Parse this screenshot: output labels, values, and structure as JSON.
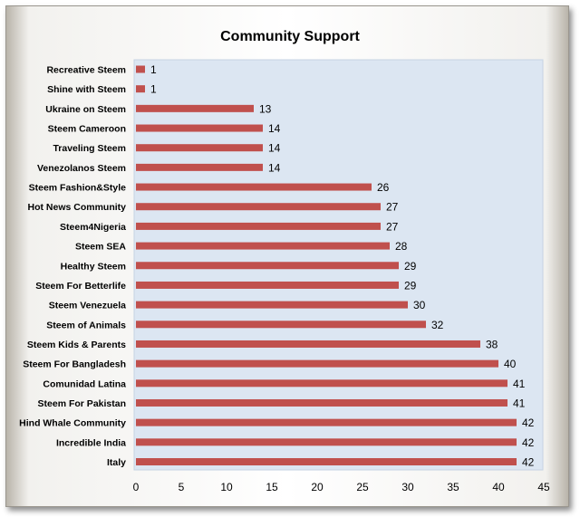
{
  "chart_data": {
    "type": "bar",
    "orientation": "horizontal",
    "title": "Community Support",
    "categories": [
      "Recreative Steem",
      "Shine with Steem",
      "Ukraine on Steem",
      "Steem Cameroon",
      "Traveling Steem",
      "Venezolanos Steem",
      "Steem Fashion&Style",
      "Hot News Community",
      "Steem4Nigeria",
      "Steem SEA",
      "Healthy Steem",
      "Steem For Betterlife",
      "Steem Venezuela",
      "Steem of Animals",
      "Steem Kids & Parents",
      "Steem For Bangladesh",
      "Comunidad Latina",
      "Steem For Pakistan",
      "Hind Whale Community",
      "Incredible India",
      "Italy"
    ],
    "values": [
      1,
      1,
      13,
      14,
      14,
      14,
      26,
      27,
      27,
      28,
      29,
      29,
      30,
      32,
      38,
      40,
      41,
      41,
      42,
      42,
      42
    ],
    "xlim": [
      0,
      45
    ],
    "xticks": [
      0,
      5,
      10,
      15,
      20,
      25,
      30,
      35,
      40,
      45
    ],
    "xlabel": "",
    "ylabel": "",
    "data_labels": true,
    "legend": "none",
    "grid": false,
    "bar_color": "#c0504d",
    "plot_background": "#dce6f2"
  }
}
